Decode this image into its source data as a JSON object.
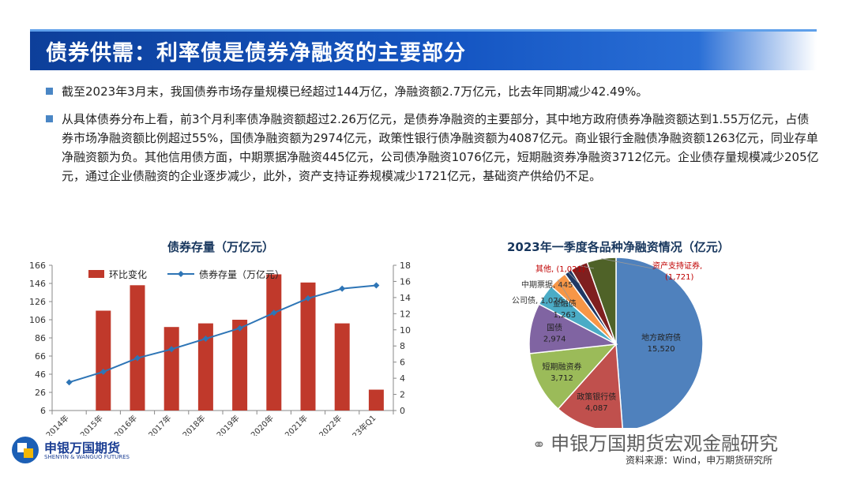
{
  "slide": {
    "title": "债券供需：利率债是债券净融资的主要部分",
    "bullets": [
      "截至2023年3月末，我国债券市场存量规模已经超过144万亿，净融资额2.7万亿元，比去年同期减少42.49%。",
      "从具体债券分布上看，前3个月利率债净融资额超过2.26万亿元，是债券净融资的主要部分，其中地方政府债券净融资额达到1.55万亿元，占债券市场净融资额比例超过55%，国债净融资额为2974亿元，政策性银行债净融资额为4087亿元。商业银行金融债净融资额1263亿元，同业存单净融资额为负。其他信用债方面，中期票据净融资445亿元，公司债净融资1076亿元，短期融资券净融资3712亿元。企业债存量规模减少205亿元，通过企业债融资的企业逐步减少，此外，资产支持证券规模减少1721亿元，基础资产供给仍不足。"
    ],
    "source": "资料来源：Wind，申万期货研究所",
    "watermark": "申银万国期货宏观金融研究",
    "logo": {
      "cn": "申银万国期货",
      "en": "SHENYIN & WANGUO FUTURES"
    }
  },
  "colors": {
    "title_bg": "#1556c3",
    "bar": "#c0392b",
    "line": "#2e75b6",
    "pie_local": "#4f81bd",
    "pie_policy": "#c0504d",
    "pie_short": "#9bbb59",
    "pie_treasury": "#8064a2",
    "pie_finance": "#4bacc6",
    "pie_corp": "#f79646",
    "pie_mtn": "#1f3864",
    "pie_other": "#7f1f1f",
    "pie_abs": "#4f6228"
  },
  "chart_data": [
    {
      "type": "bar",
      "title": "债券存量（万亿元）",
      "categories": [
        "2014年",
        "2015年",
        "2016年",
        "2017年",
        "2018年",
        "2019年",
        "2020年",
        "2021年",
        "2022年",
        "2023年Q1"
      ],
      "series": [
        {
          "name": "环比变化",
          "type": "bar",
          "axis": "left",
          "values": [
            null,
            116,
            144,
            98,
            102,
            106,
            156,
            147,
            102,
            29
          ]
        },
        {
          "name": "债券存量（万亿元）",
          "type": "line",
          "axis": "right",
          "values": [
            3.5,
            4.8,
            6.5,
            7.6,
            8.9,
            10.2,
            12.1,
            13.9,
            15.1,
            15.5
          ]
        }
      ],
      "ylim_left": [
        6,
        166
      ],
      "yticks_left": [
        6,
        26,
        46,
        66,
        86,
        106,
        126,
        146,
        166
      ],
      "ylim_right": [
        0,
        18
      ],
      "yticks_right": [
        0,
        2,
        4,
        6,
        8,
        10,
        12,
        14,
        16,
        18
      ],
      "legend": "top-left"
    },
    {
      "type": "pie",
      "title": "2023年一季度各品种净融资情况（亿元）",
      "slices": [
        {
          "label": "地方政府债",
          "value": 15520,
          "value_text": "15,520"
        },
        {
          "label": "政策银行债",
          "value": 4087,
          "value_text": "4,087"
        },
        {
          "label": "短期融资券",
          "value": 3712,
          "value_text": "3,712"
        },
        {
          "label": "国债",
          "value": 2974,
          "value_text": "2,974"
        },
        {
          "label": "金融债",
          "value": 1263,
          "value_text": "1,263"
        },
        {
          "label": "公司债",
          "value": 1076,
          "value_text": "1,076"
        },
        {
          "label": "中期票据",
          "value": 445,
          "value_text": "445"
        },
        {
          "label": "其他",
          "value": -1021,
          "value_text": "(1,021)"
        },
        {
          "label": "资产支持证券",
          "value": -1721,
          "value_text": "(1,721)"
        }
      ]
    }
  ]
}
